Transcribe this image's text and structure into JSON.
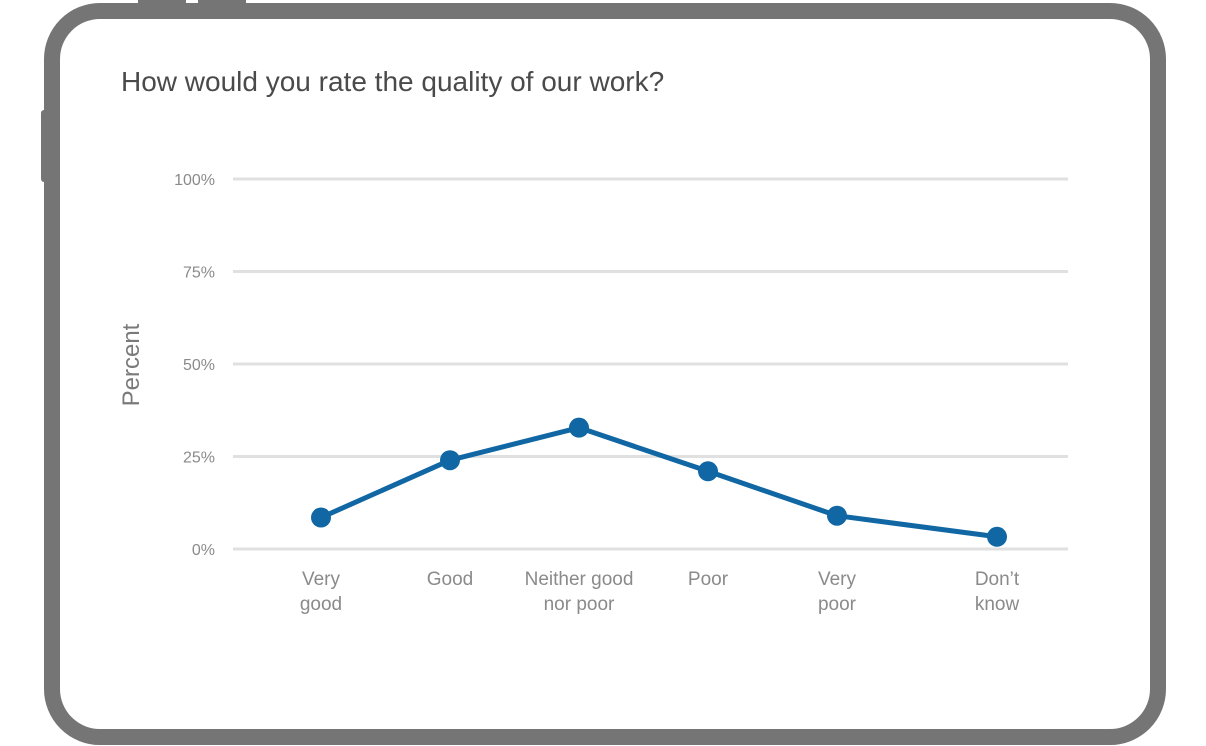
{
  "colors": {
    "frame": "#757575",
    "series": "#1167a3",
    "grid": "#e0e0e0"
  },
  "chart_data": {
    "type": "line",
    "title": "How would you rate the quality of our work?",
    "ylabel": "Percent",
    "xlabel": "",
    "ylim": [
      0,
      100
    ],
    "yticks": [
      0,
      25,
      50,
      75,
      100
    ],
    "ytick_labels": [
      "0%",
      "25%",
      "50%",
      "75%",
      "100%"
    ],
    "categories": [
      [
        "Very",
        "good"
      ],
      [
        "Good"
      ],
      [
        "Neither good",
        "nor poor"
      ],
      [
        "Poor"
      ],
      [
        "Very",
        "poor"
      ],
      [
        "Don’t",
        "know"
      ]
    ],
    "series": [
      {
        "values": [
          8.5,
          24,
          32.8,
          21,
          9,
          3.3
        ]
      }
    ],
    "grid": true,
    "legend": "none"
  }
}
